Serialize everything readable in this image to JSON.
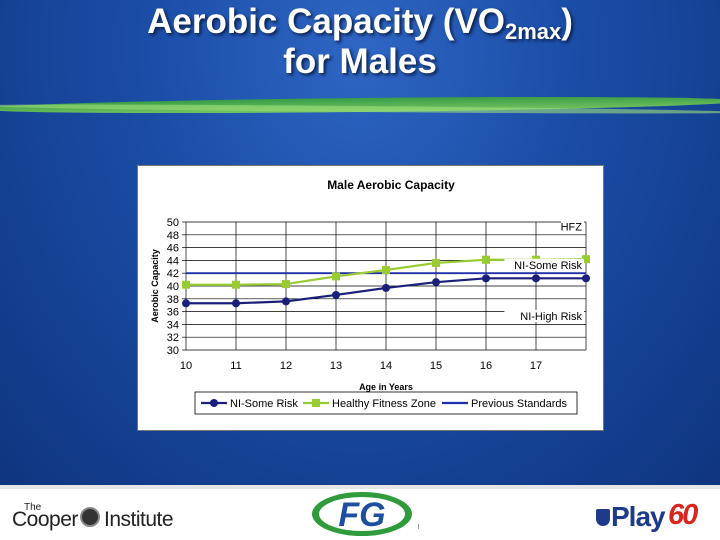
{
  "slide": {
    "title_part1": "Aerobic Capacity (VO",
    "title_sub": "2max",
    "title_part2": ")",
    "title_line2": "for Males"
  },
  "chart_data": {
    "type": "line",
    "title": "Male Aerobic Capacity",
    "xlabel": "Age in Years",
    "ylabel": "Aerobic Capacity",
    "x": [
      10,
      11,
      12,
      13,
      14,
      15,
      16,
      17,
      18
    ],
    "x_tick_labels": [
      "10",
      "11",
      "12",
      "13",
      "14",
      "15",
      "16",
      "17"
    ],
    "xlim": [
      10,
      18
    ],
    "ylim": [
      30,
      50
    ],
    "y_ticks": [
      30,
      32,
      34,
      36,
      38,
      40,
      42,
      44,
      46,
      48,
      50
    ],
    "grid": true,
    "series": [
      {
        "name": "NI-Some Risk",
        "values": [
          37.3,
          37.3,
          37.6,
          38.6,
          39.7,
          40.6,
          41.2,
          41.2,
          41.2
        ],
        "color": "#1a1f7a",
        "marker": "circle"
      },
      {
        "name": "Healthy Fitness Zone",
        "values": [
          40.2,
          40.2,
          40.3,
          41.5,
          42.5,
          43.6,
          44.1,
          44.1,
          44.2
        ],
        "color": "#99cc33",
        "marker": "square"
      },
      {
        "name": "Previous Standards",
        "values": [
          42,
          42,
          42,
          42,
          42,
          42,
          42,
          42,
          42
        ],
        "color": "#1f2fa8",
        "marker": "none"
      }
    ],
    "zone_labels": [
      {
        "text": "HFZ",
        "y": 49
      },
      {
        "text": "NI-Some Risk",
        "y": 43
      },
      {
        "text": "NI-High Risk",
        "y": 35
      }
    ],
    "legend_position": "bottom"
  },
  "footer": {
    "cooper_the": "The",
    "cooper_word1": "Cooper",
    "cooper_word2": "Institute",
    "fg_logo_text": "FG",
    "play_word": "Play",
    "play_number": "60"
  }
}
